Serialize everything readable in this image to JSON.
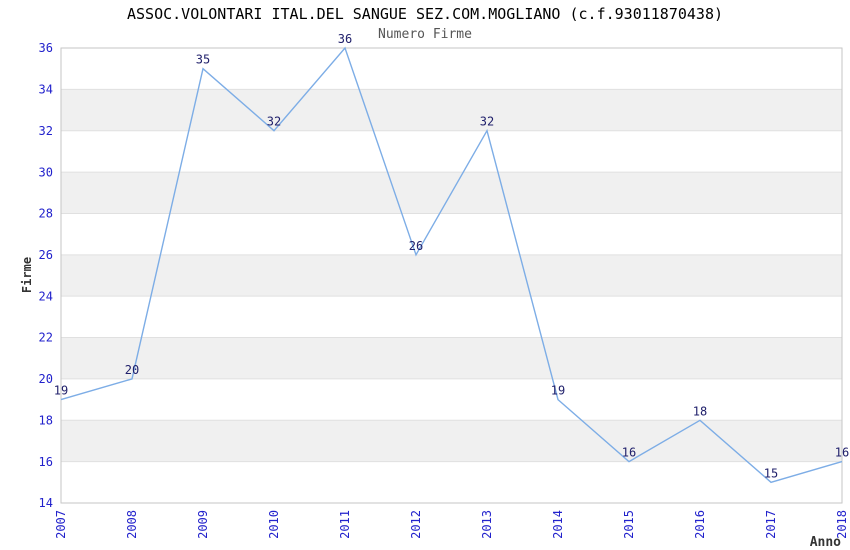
{
  "chart_data": {
    "type": "line",
    "title": "ASSOC.VOLONTARI ITAL.DEL SANGUE SEZ.COM.MOGLIANO (c.f.93011870438)",
    "subtitle": "Numero Firme",
    "xlabel": "Anno",
    "ylabel": "Firme",
    "x": [
      2007,
      2008,
      2009,
      2010,
      2011,
      2012,
      2013,
      2014,
      2015,
      2016,
      2017,
      2018
    ],
    "series": [
      {
        "name": "Numero Firme",
        "values": [
          19,
          20,
          35,
          32,
          36,
          26,
          32,
          19,
          16,
          18,
          15,
          16
        ]
      }
    ],
    "ylim": [
      14,
      36
    ],
    "ytick_step": 2,
    "yticks": [
      14,
      16,
      18,
      20,
      22,
      24,
      26,
      28,
      30,
      32,
      34,
      36
    ],
    "grid": "horizontal gridlines with alternating shaded bands",
    "legend": "none",
    "point_labels_shown": true,
    "colors": {
      "line": "#7dade6",
      "band": "#f0f0f0",
      "grid": "#e0e0e0",
      "border": "#c6c6c6",
      "tick_label": "#2222cc",
      "point_label": "#20206b",
      "title": "#000000",
      "subtitle": "#555555",
      "axis_title": "#333333",
      "background": "#ffffff"
    }
  }
}
